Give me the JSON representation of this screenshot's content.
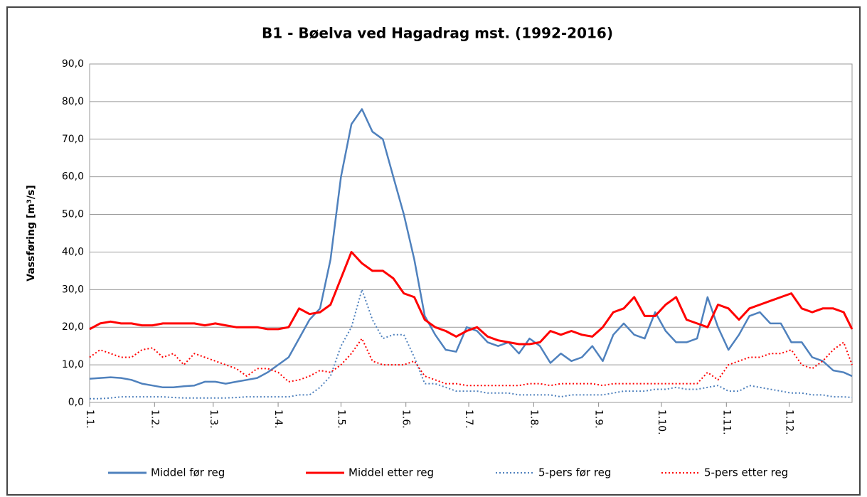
{
  "chart_data": {
    "type": "line",
    "title": "B1 - Bøelva ved Hagadrag mst. (1992-2016)",
    "y_label": "Vassføring [m³/s]",
    "x": [
      1,
      6,
      11,
      16,
      21,
      26,
      31,
      36,
      41,
      46,
      51,
      56,
      61,
      66,
      71,
      76,
      81,
      86,
      91,
      96,
      101,
      106,
      111,
      116,
      121,
      126,
      131,
      136,
      141,
      146,
      151,
      156,
      161,
      166,
      171,
      176,
      181,
      186,
      191,
      196,
      201,
      206,
      211,
      216,
      221,
      226,
      231,
      236,
      241,
      246,
      251,
      256,
      261,
      266,
      271,
      276,
      281,
      286,
      291,
      296,
      301,
      306,
      311,
      316,
      321,
      326,
      331,
      336,
      341,
      346,
      351,
      356,
      361,
      365
    ],
    "xlim": [
      1,
      365
    ],
    "xticks": [
      {
        "value": 1,
        "label": "1.1."
      },
      {
        "value": 32,
        "label": "1.2."
      },
      {
        "value": 60,
        "label": "1.3."
      },
      {
        "value": 91,
        "label": "1.4."
      },
      {
        "value": 121,
        "label": "1.5."
      },
      {
        "value": 152,
        "label": "1.6."
      },
      {
        "value": 182,
        "label": "1.7."
      },
      {
        "value": 213,
        "label": "1.8."
      },
      {
        "value": 244,
        "label": "1.9."
      },
      {
        "value": 274,
        "label": "1.10."
      },
      {
        "value": 305,
        "label": "1.11."
      },
      {
        "value": 335,
        "label": "1.12."
      }
    ],
    "ylim": [
      0,
      90
    ],
    "yticks": [
      {
        "value": 0,
        "label": "0,0"
      },
      {
        "value": 10,
        "label": "10,0"
      },
      {
        "value": 20,
        "label": "20,0"
      },
      {
        "value": 30,
        "label": "30,0"
      },
      {
        "value": 40,
        "label": "40,0"
      },
      {
        "value": 50,
        "label": "50,0"
      },
      {
        "value": 60,
        "label": "60,0"
      },
      {
        "value": 70,
        "label": "70,0"
      },
      {
        "value": 80,
        "label": "80,0"
      },
      {
        "value": 90,
        "label": "90,0"
      }
    ],
    "grid": true,
    "legend": "bottom",
    "series": [
      {
        "name": "Middel før reg",
        "color": "#4f81bd",
        "dash": "solid",
        "values": [
          6.3,
          6.5,
          6.7,
          6.5,
          6,
          5,
          4.5,
          4,
          4,
          4.3,
          4.5,
          5.5,
          5.5,
          5,
          5.5,
          6,
          6.5,
          8,
          10,
          12,
          17,
          22,
          25,
          38,
          60,
          74,
          78,
          72,
          70,
          60,
          50,
          38,
          23,
          18,
          14,
          13.5,
          20,
          19,
          16,
          15,
          16,
          13,
          17,
          15,
          10.5,
          13,
          11,
          12,
          15,
          11,
          18,
          21,
          18,
          17,
          24,
          19,
          16,
          16,
          17,
          28,
          20,
          14,
          18,
          23,
          24,
          21,
          21,
          16,
          16,
          12,
          11,
          8.5,
          8,
          7
        ]
      },
      {
        "name": "Middel etter reg",
        "color": "#ff0000",
        "dash": "solid",
        "values": [
          19.5,
          21,
          21.5,
          21,
          21,
          20.5,
          20.5,
          21,
          21,
          21,
          21,
          20.5,
          21,
          20.5,
          20,
          20,
          20,
          19.5,
          19.5,
          20,
          25,
          23.5,
          24,
          26,
          33,
          40,
          37,
          35,
          35,
          33,
          29,
          28,
          22,
          20,
          19,
          17.5,
          19,
          20,
          17.5,
          16.5,
          16,
          15.5,
          15.5,
          16,
          19,
          18,
          19,
          18,
          17.5,
          20,
          24,
          25,
          28,
          23,
          23,
          26,
          28,
          22,
          21,
          20,
          26,
          25,
          22,
          25,
          26,
          27,
          28,
          29,
          25,
          24,
          25,
          25,
          24,
          19.5
        ]
      },
      {
        "name": "5-pers før reg",
        "color": "#4f81bd",
        "dash": "dotted",
        "values": [
          1,
          1,
          1.2,
          1.5,
          1.5,
          1.5,
          1.5,
          1.5,
          1.3,
          1.2,
          1.2,
          1.2,
          1.2,
          1.2,
          1.3,
          1.5,
          1.5,
          1.5,
          1.5,
          1.5,
          2,
          2,
          4,
          7,
          15,
          20,
          30,
          22,
          17,
          18,
          18,
          12,
          5,
          5,
          4,
          3,
          3,
          3,
          2.5,
          2.5,
          2.5,
          2,
          2,
          2,
          2,
          1.5,
          2,
          2,
          2,
          2,
          2.5,
          3,
          3,
          3,
          3.5,
          3.5,
          4,
          3.5,
          3.5,
          4,
          4.5,
          3,
          3,
          4.5,
          4,
          3.5,
          3,
          2.5,
          2.5,
          2,
          2,
          1.5,
          1.5,
          1.3
        ]
      },
      {
        "name": "5-pers etter reg",
        "color": "#ff0000",
        "dash": "dotted",
        "values": [
          12,
          14,
          13,
          12,
          12,
          14,
          14.5,
          12,
          13,
          10,
          13,
          12,
          11,
          10,
          9,
          7,
          9,
          9,
          8,
          5.5,
          6,
          7,
          8.5,
          8,
          10,
          13,
          17,
          11,
          10,
          10,
          10,
          11,
          7,
          6,
          5,
          5,
          4.5,
          4.5,
          4.5,
          4.5,
          4.5,
          4.5,
          5,
          5,
          4.5,
          5,
          5,
          5,
          5,
          4.5,
          5,
          5,
          5,
          5,
          5,
          5,
          5,
          5,
          5,
          8,
          6,
          10,
          11,
          12,
          12,
          13,
          13,
          14,
          10,
          9,
          11,
          14,
          16,
          10
        ]
      }
    ]
  }
}
